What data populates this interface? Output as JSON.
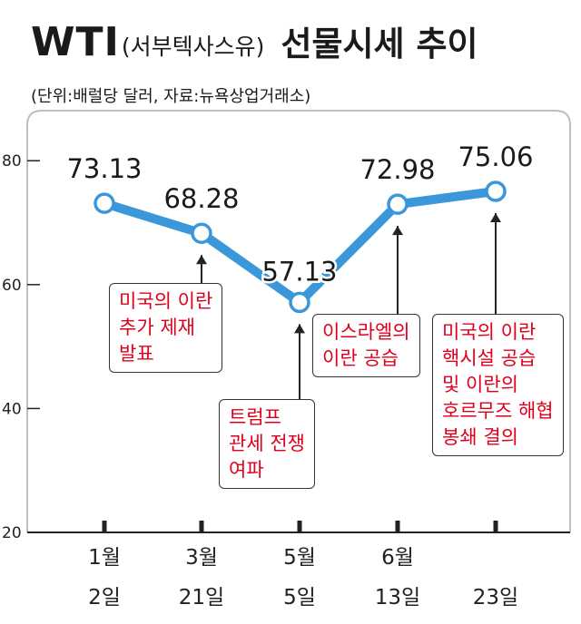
{
  "title": {
    "main": "WTI",
    "paren": "(서부텍사스유)",
    "rest": "선물시세 추이"
  },
  "subtitle": "(단위:배럴당 달러, 자료:뉴욕상업거래소)",
  "colors": {
    "line": "#3a97d9",
    "annotation_text": "#e0001b",
    "axis": "#222222",
    "frame": "#bfbfbf"
  },
  "chart_data": {
    "type": "line",
    "categories": [
      "1월\n2일",
      "3월\n21일",
      "5월\n5일",
      "6월\n13일",
      "23일"
    ],
    "values": [
      73.13,
      68.28,
      57.13,
      72.98,
      75.06
    ],
    "data_labels": [
      "73.13",
      "68.28",
      "57.13",
      "72.98",
      "75.06"
    ],
    "ylim": [
      20,
      80
    ],
    "yticks": [
      20,
      40,
      60,
      80
    ],
    "grid": false,
    "annotations": [
      {
        "point": 1,
        "text": "미국의 이란\n추가 제재\n발표"
      },
      {
        "point": 2,
        "text": "트럼프\n관세 전쟁\n여파"
      },
      {
        "point": 3,
        "text": "이스라엘의\n이란 공습"
      },
      {
        "point": 4,
        "text": "미국의 이란\n핵시설 공습\n및 이란의\n호르무즈 해협\n봉쇄 결의"
      }
    ]
  }
}
